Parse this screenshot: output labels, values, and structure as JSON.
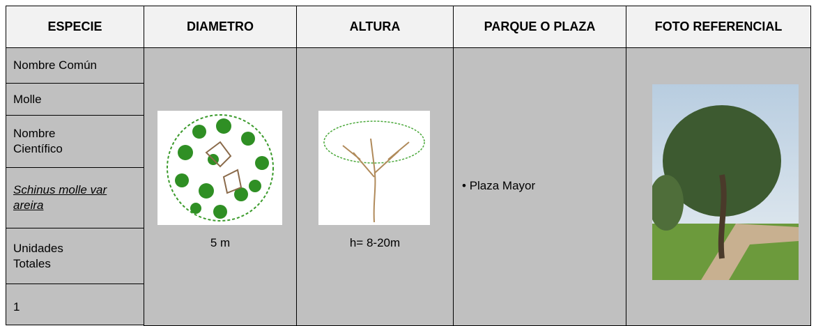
{
  "table": {
    "headers": [
      "ESPECIE",
      "DIAMETRO",
      "ALTURA",
      "PARQUE O PLAZA",
      "FOTO REFERENCIAL"
    ],
    "especie": [
      "Nombre Común",
      "Molle",
      "Nombre Científico",
      "Schinus molle var areira",
      "Unidades Totales",
      "1"
    ],
    "diametro": "5 m",
    "altura": "h= 8-20m",
    "parques": [
      "Plaza Mayor"
    ]
  }
}
